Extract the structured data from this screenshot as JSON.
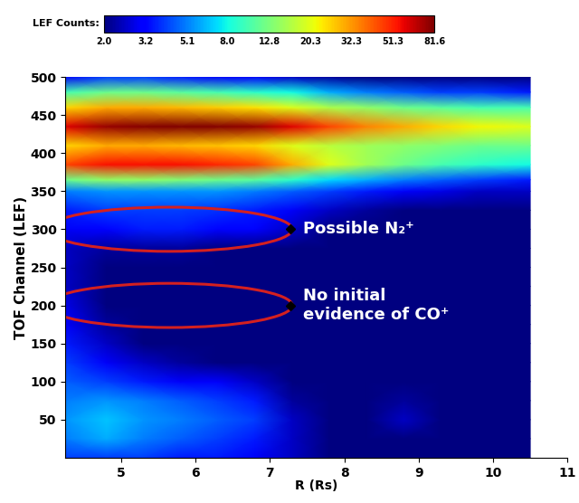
{
  "chart_data": {
    "type": "heatmap",
    "xlabel": "R (Rs)",
    "ylabel": "TOF Channel (LEF)",
    "x": [
      4.25,
      4.8,
      5.3,
      5.8,
      6.3,
      6.8,
      7.3,
      7.8,
      8.3,
      8.8,
      9.3,
      9.8,
      10.5
    ],
    "y": [
      0,
      25,
      50,
      75,
      100,
      125,
      150,
      175,
      200,
      225,
      250,
      275,
      300,
      325,
      350,
      365,
      385,
      410,
      435,
      460,
      480,
      500
    ],
    "cells": [
      [
        4,
        4,
        4,
        3.5,
        3.5,
        3,
        2.5,
        2,
        2,
        2,
        2,
        2,
        2
      ],
      [
        5,
        6,
        5,
        4.5,
        4,
        3.5,
        2.5,
        2,
        2,
        2,
        2,
        2,
        2
      ],
      [
        5.5,
        6.5,
        5.5,
        5,
        4.5,
        4,
        2.5,
        2,
        2,
        2.5,
        2,
        2,
        2
      ],
      [
        5,
        5.5,
        5,
        4.5,
        4,
        3.5,
        2.2,
        2,
        2,
        2.2,
        2,
        2,
        2
      ],
      [
        4.5,
        4,
        3.5,
        3,
        3,
        2.5,
        2,
        2,
        2,
        2,
        2,
        2,
        2
      ],
      [
        4,
        3,
        2.5,
        2.2,
        2,
        2,
        2,
        2,
        2,
        2,
        2,
        2,
        2
      ],
      [
        3.5,
        2.5,
        2,
        2,
        2,
        2,
        2,
        2,
        2,
        2,
        2,
        2,
        2
      ],
      [
        3,
        2.2,
        2,
        2,
        2,
        2,
        2,
        2,
        2,
        2,
        2,
        2,
        2
      ],
      [
        2.8,
        2,
        2,
        2,
        2,
        2,
        2,
        2,
        2,
        2,
        2,
        2,
        2
      ],
      [
        2.5,
        2,
        2,
        2,
        2,
        2,
        2,
        2,
        2,
        2,
        2,
        2,
        2
      ],
      [
        2.5,
        2,
        2,
        2,
        2,
        2,
        2,
        2,
        2,
        2,
        2,
        2,
        2
      ],
      [
        2.5,
        2.2,
        2.2,
        2.2,
        2,
        2,
        2,
        2,
        2,
        2,
        2,
        2,
        2
      ],
      [
        3,
        3.2,
        3.5,
        3.5,
        3.2,
        3.2,
        2.5,
        2,
        2,
        2,
        2,
        2,
        2
      ],
      [
        3.5,
        4,
        4,
        4,
        3.8,
        3.5,
        3,
        2.5,
        2.2,
        2,
        2,
        2,
        2
      ],
      [
        5,
        5.5,
        5.5,
        5.5,
        5.5,
        5,
        4.5,
        4,
        3.5,
        3,
        2.8,
        2.5,
        2.5
      ],
      [
        12,
        14,
        14,
        13,
        12,
        11,
        9,
        7,
        6,
        5,
        4.5,
        4,
        3.5
      ],
      [
        45,
        55,
        55,
        55,
        50,
        45,
        30,
        20,
        15,
        12,
        10,
        9,
        8
      ],
      [
        25,
        30,
        30,
        28,
        27,
        25,
        20,
        17,
        15,
        14,
        13,
        12,
        12
      ],
      [
        60,
        75,
        80,
        85,
        80,
        75,
        60,
        45,
        35,
        30,
        25,
        22,
        20
      ],
      [
        25,
        30,
        30,
        28,
        26,
        24,
        20,
        16,
        14,
        12,
        11,
        10,
        10
      ],
      [
        10,
        12,
        12,
        11,
        10,
        9,
        8,
        6,
        5,
        4.5,
        4,
        4,
        3.5
      ],
      [
        3,
        4,
        4,
        3.5,
        3,
        3,
        2.5,
        2.2,
        2,
        2,
        2,
        2,
        2
      ]
    ],
    "xlim": [
      4.25,
      11
    ],
    "xticks": [
      5,
      6,
      7,
      8,
      9,
      10,
      11
    ],
    "ylim": [
      0,
      500
    ],
    "yticks": [
      50,
      100,
      150,
      200,
      250,
      300,
      350,
      400,
      450,
      500
    ],
    "colorbar_label": "LEF Counts:",
    "colorbar_range": [
      2,
      81.6
    ],
    "colorbar_ticks": [
      {
        "value": 2,
        "label": "2.0"
      },
      3.2,
      5.1,
      {
        "value": 8,
        "label": "8.0"
      },
      12.8,
      20.3,
      32.3,
      51.3,
      81.6
    ],
    "log": true,
    "annotations": [
      {
        "text": "Possible N₂⁺",
        "y": 300
      },
      {
        "text": "No initial\nevidence of CO⁺",
        "y": 200
      }
    ]
  }
}
